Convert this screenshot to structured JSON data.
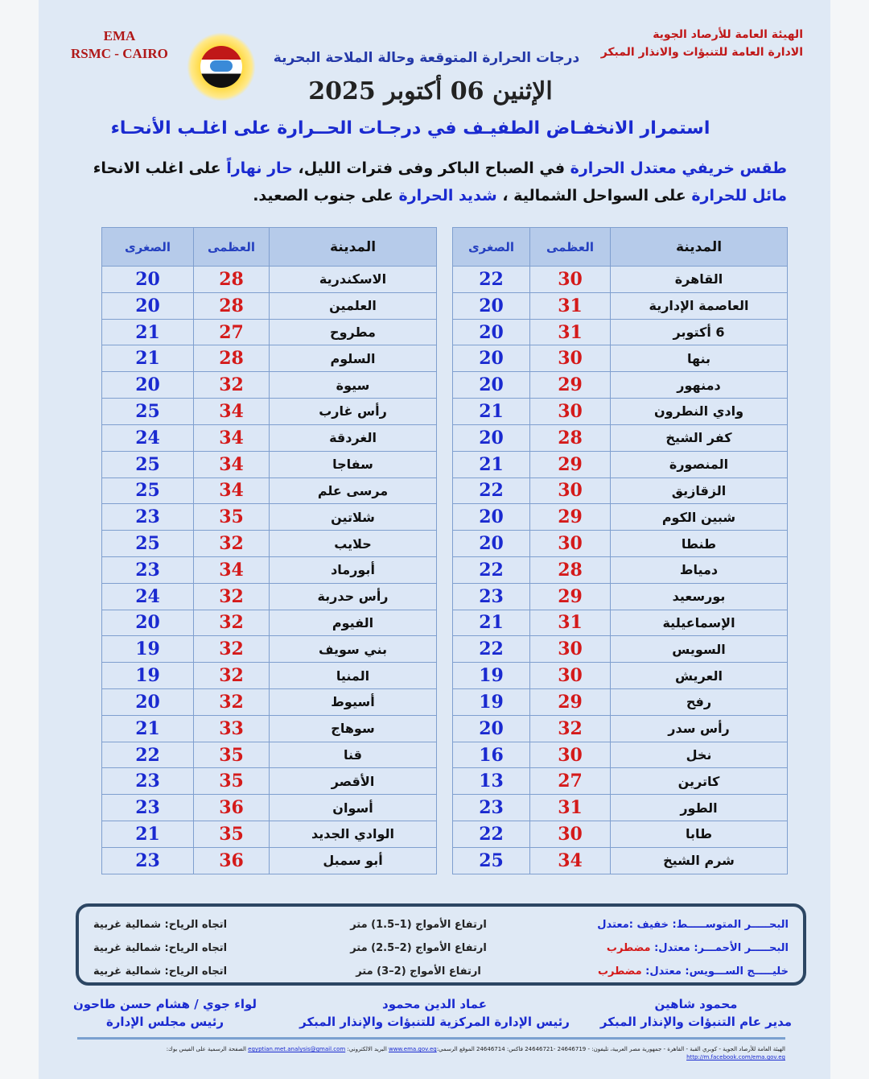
{
  "header": {
    "ema": "EMA",
    "rsmc": "RSMC - CAIRO",
    "org_line1": "الهيئة العامة للأرصاد الجوية",
    "org_line2": "الادارة العامة للتنبؤات والانذار المبكر",
    "subtitle": "درجات الحرارة المتوقعة وحالة الملاحة البحرية",
    "date": "الإثنين 06 أكتوبر 2025",
    "logo_text": "EMA"
  },
  "headline": "استمرار الانخفـاض الطفيـف في درجـات الحــرارة على اغلـب الأنحـاء",
  "description": {
    "p1": "طقس خريفي معتدل الحرارة",
    "p2": " في الصباح الباكر وفى فترات الليل، ",
    "p3": "حار نهاراً",
    "p4": " على اغلب الانحاء",
    "p5": "مائل للحرارة",
    "p6": " على السواحل الشمالية ، ",
    "p7": "شديد الحرارة",
    "p8": " على جنوب الصعيد."
  },
  "table_headers": {
    "city": "المدينة",
    "max": "العظمى",
    "min": "الصغرى"
  },
  "right_table": [
    [
      "القاهرة",
      "30",
      "22"
    ],
    [
      "العاصمة الإدارية",
      "31",
      "20"
    ],
    [
      "6 أكتوبر",
      "31",
      "20"
    ],
    [
      "بنها",
      "30",
      "20"
    ],
    [
      "دمنهور",
      "29",
      "20"
    ],
    [
      "وادي النطرون",
      "30",
      "21"
    ],
    [
      "كفر الشيخ",
      "28",
      "20"
    ],
    [
      "المنصورة",
      "29",
      "21"
    ],
    [
      "الزقازيق",
      "30",
      "22"
    ],
    [
      "شبين الكوم",
      "29",
      "20"
    ],
    [
      "طنطا",
      "30",
      "20"
    ],
    [
      "دمياط",
      "28",
      "22"
    ],
    [
      "بورسعيد",
      "29",
      "23"
    ],
    [
      "الإسماعيلية",
      "31",
      "21"
    ],
    [
      "السويس",
      "30",
      "22"
    ],
    [
      "العريش",
      "30",
      "19"
    ],
    [
      "رفح",
      "29",
      "19"
    ],
    [
      "رأس سدر",
      "32",
      "20"
    ],
    [
      "نخل",
      "30",
      "16"
    ],
    [
      "كاترين",
      "27",
      "13"
    ],
    [
      "الطور",
      "31",
      "23"
    ],
    [
      "طابا",
      "30",
      "22"
    ],
    [
      "شرم الشيخ",
      "34",
      "25"
    ]
  ],
  "left_table": [
    [
      "الاسكندرية",
      "28",
      "20"
    ],
    [
      "العلمين",
      "28",
      "20"
    ],
    [
      "مطروح",
      "27",
      "21"
    ],
    [
      "السلوم",
      "28",
      "21"
    ],
    [
      "سيوة",
      "32",
      "20"
    ],
    [
      "رأس غارب",
      "34",
      "25"
    ],
    [
      "الغردقة",
      "34",
      "24"
    ],
    [
      "سفاجا",
      "34",
      "25"
    ],
    [
      "مرسى علم",
      "34",
      "25"
    ],
    [
      "شلاتين",
      "35",
      "23"
    ],
    [
      "حلايب",
      "32",
      "25"
    ],
    [
      "أبورماد",
      "34",
      "23"
    ],
    [
      "رأس حدربة",
      "32",
      "24"
    ],
    [
      "الفيوم",
      "32",
      "20"
    ],
    [
      "بني سويف",
      "32",
      "19"
    ],
    [
      "المنيا",
      "32",
      "19"
    ],
    [
      "أسيوط",
      "32",
      "20"
    ],
    [
      "سوهاج",
      "33",
      "21"
    ],
    [
      "قنا",
      "35",
      "22"
    ],
    [
      "الأقصر",
      "35",
      "23"
    ],
    [
      "أسوان",
      "36",
      "23"
    ],
    [
      "الوادي الجديد",
      "35",
      "21"
    ],
    [
      "أبو سمبل",
      "36",
      "23"
    ]
  ],
  "marine": [
    {
      "sea": "البحـــــر المتوســـــط:",
      "state": " خفيف :معتدل",
      "state_bad": "",
      "waves": "ارتفاع الأمواج (1–1.5) متر",
      "wind": "اتجاه الرياح: شمالية غربية"
    },
    {
      "sea": "البحـــــر الأحمـــر:",
      "state": "  معتدل: ",
      "state_bad": "مضطرب",
      "waves": "ارتفاع الأمواج (2–2.5) متر",
      "wind": "اتجاه الرياح: شمالية غربية"
    },
    {
      "sea": "خليـــــج الســـويس:",
      "state": "  معتدل: ",
      "state_bad": "مضطرب",
      "waves": "ارتفاع الأمواج (2–3) متر",
      "wind": "اتجاه الرياح: شمالية غربية"
    }
  ],
  "signatures": [
    {
      "name": "محمود شاهين",
      "title": "مدير عام التنبؤات والإنذار المبكر"
    },
    {
      "name": "عماد الدين محمود",
      "title": "رئيس الإدارة المركزية للتنبؤات والإنذار المبكر"
    },
    {
      "name": "لواء جوي / هشام حسن طاحون",
      "title": "رئيس مجلس الإدارة"
    }
  ],
  "footer": {
    "address": "الهيئة العامة للأرصاد الجوية - كوبري القبة - القاهرة - جمهورية مصر العربية، تليفون: - 24646719 -24646721 فاكس: 24646714 الموقع الرسمي:",
    "website": "www.ema.gov.eg",
    "email_label": " البريد الالكتروني: ",
    "email": "egyptian.met.analysis@gmail.com",
    "fb_label": " الصفحة الرسمية على الفيس بوك: ",
    "facebook": "http://m.facebook.com/ema.gov.eg"
  }
}
